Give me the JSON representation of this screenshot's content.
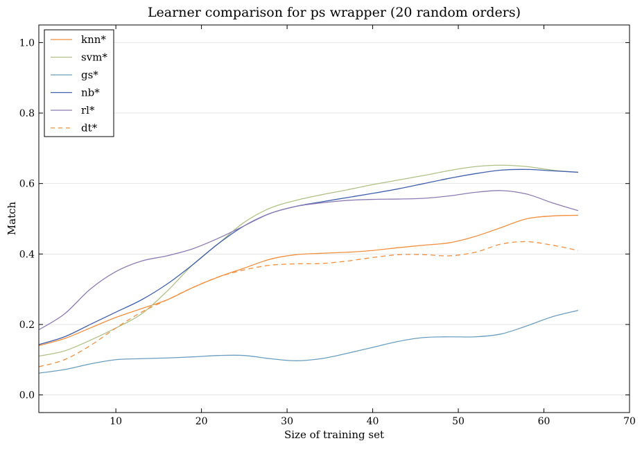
{
  "chart_data": {
    "type": "line",
    "title": "Learner comparison for ps wrapper (20 random orders)",
    "xlabel": "Size of training set",
    "ylabel": "Match",
    "xlim": [
      1,
      70
    ],
    "ylim": [
      -0.05,
      1.05
    ],
    "xticks": [
      10,
      20,
      30,
      40,
      50,
      60,
      70
    ],
    "yticks": [
      0.0,
      0.2,
      0.4,
      0.6,
      0.8,
      1.0
    ],
    "ytick_labels": [
      "0.0",
      "0.2",
      "0.4",
      "0.6",
      "0.8",
      "1.0"
    ],
    "grid": "horizontal",
    "legend_position": "upper-left",
    "series": [
      {
        "name": "knn*",
        "color": "#f28e3c",
        "dash": "solid",
        "x": [
          1,
          4,
          7,
          10,
          13,
          16,
          19,
          22,
          25,
          28,
          31,
          34,
          37,
          40,
          43,
          46,
          49,
          52,
          55,
          58,
          61,
          64
        ],
        "y": [
          0.14,
          0.16,
          0.19,
          0.22,
          0.245,
          0.27,
          0.305,
          0.335,
          0.36,
          0.385,
          0.398,
          0.402,
          0.405,
          0.41,
          0.418,
          0.425,
          0.432,
          0.45,
          0.475,
          0.5,
          0.508,
          0.51
        ]
      },
      {
        "name": "svm*",
        "color": "#afc085",
        "dash": "solid",
        "x": [
          1,
          4,
          7,
          10,
          13,
          16,
          19,
          22,
          25,
          28,
          31,
          34,
          37,
          40,
          43,
          46,
          49,
          52,
          55,
          58,
          61,
          64
        ],
        "y": [
          0.11,
          0.125,
          0.155,
          0.19,
          0.23,
          0.295,
          0.37,
          0.43,
          0.49,
          0.53,
          0.552,
          0.568,
          0.582,
          0.597,
          0.61,
          0.623,
          0.637,
          0.648,
          0.652,
          0.648,
          0.638,
          0.632
        ]
      },
      {
        "name": "gs*",
        "color": "#6a9ec1",
        "dash": "solid",
        "x": [
          1,
          4,
          7,
          10,
          13,
          16,
          19,
          22,
          25,
          28,
          31,
          34,
          37,
          40,
          43,
          46,
          49,
          52,
          55,
          58,
          61,
          64
        ],
        "y": [
          0.062,
          0.072,
          0.088,
          0.1,
          0.103,
          0.105,
          0.108,
          0.112,
          0.112,
          0.103,
          0.097,
          0.103,
          0.118,
          0.135,
          0.152,
          0.163,
          0.165,
          0.165,
          0.173,
          0.196,
          0.222,
          0.24
        ]
      },
      {
        "name": "nb*",
        "color": "#3f5fae",
        "dash": "solid",
        "x": [
          1,
          4,
          7,
          10,
          13,
          16,
          19,
          22,
          25,
          28,
          31,
          34,
          37,
          40,
          43,
          46,
          49,
          52,
          55,
          58,
          61,
          64
        ],
        "y": [
          0.143,
          0.165,
          0.2,
          0.235,
          0.27,
          0.315,
          0.37,
          0.43,
          0.48,
          0.515,
          0.535,
          0.548,
          0.56,
          0.572,
          0.585,
          0.6,
          0.615,
          0.628,
          0.638,
          0.64,
          0.636,
          0.632
        ]
      },
      {
        "name": "rl*",
        "color": "#8c7ab4",
        "dash": "solid",
        "x": [
          1,
          4,
          7,
          10,
          13,
          16,
          19,
          22,
          25,
          28,
          31,
          34,
          37,
          40,
          43,
          46,
          49,
          52,
          55,
          58,
          61,
          64
        ],
        "y": [
          0.185,
          0.23,
          0.3,
          0.35,
          0.38,
          0.395,
          0.415,
          0.445,
          0.48,
          0.515,
          0.535,
          0.545,
          0.552,
          0.555,
          0.556,
          0.558,
          0.565,
          0.575,
          0.58,
          0.57,
          0.545,
          0.523
        ]
      },
      {
        "name": "dt*",
        "color": "#f28e3c",
        "dash": "dashed",
        "x": [
          1,
          4,
          7,
          10,
          13,
          16,
          19,
          22,
          25,
          28,
          31,
          34,
          37,
          40,
          43,
          46,
          49,
          52,
          55,
          58,
          61,
          64
        ],
        "y": [
          0.08,
          0.1,
          0.14,
          0.19,
          0.235,
          0.27,
          0.305,
          0.335,
          0.355,
          0.368,
          0.372,
          0.373,
          0.38,
          0.39,
          0.398,
          0.398,
          0.395,
          0.405,
          0.428,
          0.435,
          0.425,
          0.41
        ]
      }
    ]
  }
}
